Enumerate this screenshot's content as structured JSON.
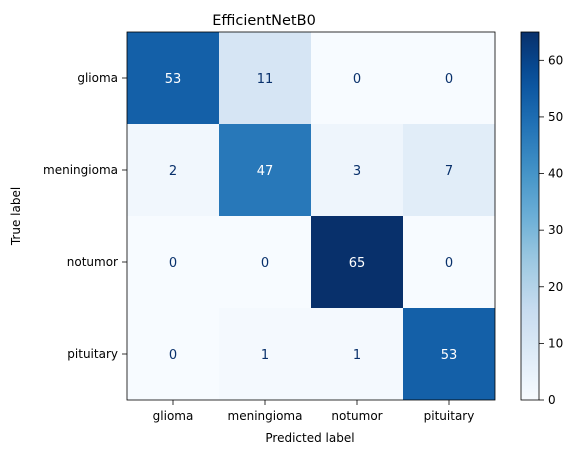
{
  "chart_data": {
    "type": "heatmap",
    "title": "EfficientNetB0",
    "xlabel": "Predicted label",
    "ylabel": "True label",
    "x_categories": [
      "glioma",
      "meningioma",
      "notumor",
      "pituitary"
    ],
    "y_categories": [
      "glioma",
      "meningioma",
      "notumor",
      "pituitary"
    ],
    "values": [
      [
        53,
        11,
        0,
        0
      ],
      [
        2,
        47,
        3,
        7
      ],
      [
        0,
        0,
        65,
        0
      ],
      [
        0,
        1,
        1,
        53
      ]
    ],
    "colormap": "Blues",
    "vmin": 0,
    "vmax": 65,
    "colorbar_ticks": [
      0,
      10,
      20,
      30,
      40,
      50,
      60
    ],
    "grid": false
  }
}
